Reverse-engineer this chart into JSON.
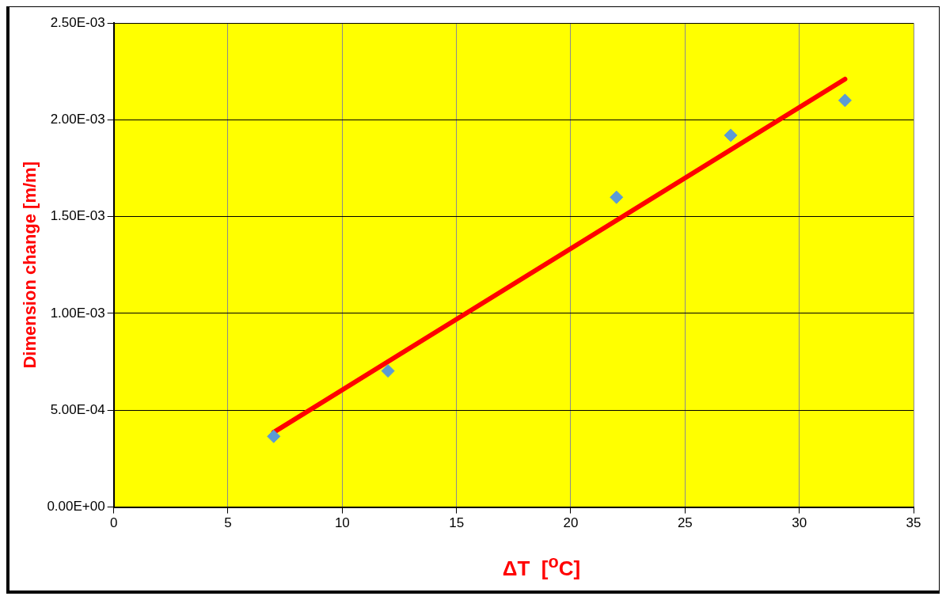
{
  "chart_data": {
    "type": "scatter",
    "xlabel": "ΔT  [$^{o}$C]",
    "ylabel": "Dimension change [m/m]",
    "series": [
      {
        "type": "scatter",
        "color": "#5b9bd5",
        "x": [
          7,
          12,
          22,
          27,
          32
        ],
        "values": [
          0.000365,
          0.000703,
          0.0016,
          0.00192,
          0.0021
        ],
        "marker": "diamond"
      },
      {
        "type": "line",
        "color": "#ff0000",
        "x": [
          7,
          32
        ],
        "values": [
          0.000386,
          0.00221
        ],
        "marker": "none",
        "line_style": "solid"
      }
    ],
    "xlim": [
      0,
      35
    ],
    "xticks": [
      0,
      5,
      10,
      15,
      20,
      25,
      30,
      35
    ],
    "ylim": [
      0,
      0.0025
    ],
    "yticks": [
      {
        "value": 0,
        "label": "0.00E+00"
      },
      {
        "value": 0.0005,
        "label": "5.00E-04"
      },
      {
        "value": 0.001,
        "label": "1.00E-03"
      },
      {
        "value": 0.0015,
        "label": "1.50E-03"
      },
      {
        "value": 0.002,
        "label": "2.00E-03"
      },
      {
        "value": 0.0025,
        "label": "2.50E-03"
      }
    ],
    "grid": true,
    "legend": false
  }
}
